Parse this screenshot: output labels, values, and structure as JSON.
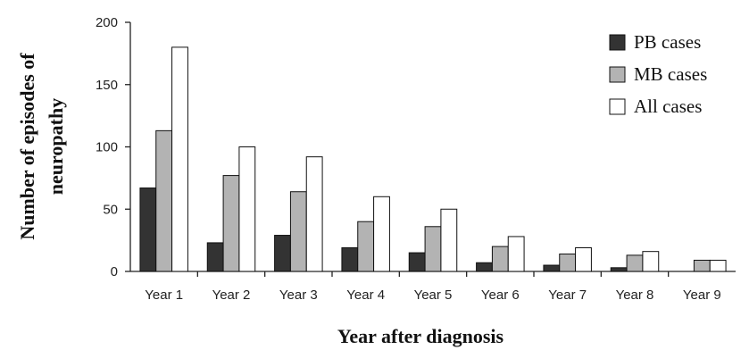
{
  "chart_data": {
    "type": "bar",
    "title": "",
    "xlabel": "Year after diagnosis",
    "ylabel": "Number of episodes of neuropathy",
    "ylim": [
      0,
      200
    ],
    "yticks": [
      0,
      50,
      100,
      150,
      200
    ],
    "grid": false,
    "legend_position": "top-right",
    "categories": [
      "Year 1",
      "Year 2",
      "Year 3",
      "Year 4",
      "Year 5",
      "Year 6",
      "Year 7",
      "Year 8",
      "Year 9"
    ],
    "series": [
      {
        "name": "PB cases",
        "color": "#333333",
        "values": [
          67,
          23,
          29,
          19,
          15,
          7,
          5,
          3,
          0
        ]
      },
      {
        "name": "MB cases",
        "color": "#b3b3b3",
        "values": [
          113,
          77,
          64,
          40,
          36,
          20,
          14,
          13,
          9
        ]
      },
      {
        "name": "All cases",
        "color": "#ffffff",
        "values": [
          180,
          100,
          92,
          60,
          50,
          28,
          19,
          16,
          9
        ]
      }
    ]
  }
}
